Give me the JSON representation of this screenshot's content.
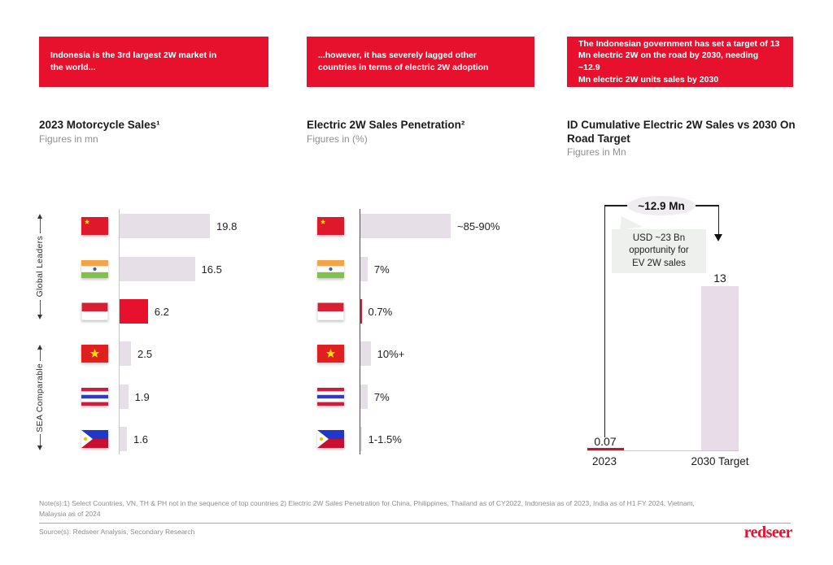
{
  "colors": {
    "accent_red": "#E8112D",
    "bar_neutral": "#E6DFE7",
    "bar_pink": "#E8DCE8",
    "bar_dark_red": "#C31432",
    "text_dark": "#1F1F1F",
    "text_gray": "#8F8F8F"
  },
  "header_boxes": [
    {
      "text": "Indonesia is the 3rd largest 2W market in\nthe world..."
    },
    {
      "text": "...however, it has severely lagged other\ncountries in terms of electric 2W adoption"
    },
    {
      "text": "The Indonesian government has set a target of 13\nMn electric 2W on the road by 2030, needing ~12.9\nMn electric 2W units sales by 2030"
    }
  ],
  "groups": {
    "top": "Global Leaders",
    "bottom": "SEA Comparable"
  },
  "chart_data": [
    {
      "type": "bar",
      "orientation": "horizontal",
      "title": "2023 Motorcycle Sales¹",
      "subtitle": "Figures in mn",
      "categories": [
        "China",
        "India",
        "Indonesia",
        "Vietnam",
        "Thailand",
        "Philippines"
      ],
      "values": [
        19.8,
        16.5,
        6.2,
        2.5,
        1.9,
        1.6
      ],
      "labels": [
        "19.8",
        "16.5",
        "6.2",
        "2.5",
        "1.9",
        "1.6"
      ],
      "highlight_index": 2,
      "grid": false,
      "legend": "none"
    },
    {
      "type": "bar",
      "orientation": "horizontal",
      "title": "Electric 2W Sales Penetration²",
      "subtitle": "Figures in (%)",
      "categories": [
        "China",
        "India",
        "Indonesia",
        "Vietnam",
        "Thailand",
        "Philippines"
      ],
      "values": [
        87.5,
        7,
        0.7,
        10,
        7,
        1.25
      ],
      "labels": [
        "~85-90%",
        "7%",
        "0.7%",
        "10%+",
        "7%",
        "1-1.5%"
      ],
      "highlight_index": 2,
      "grid": false,
      "legend": "none"
    },
    {
      "type": "bar",
      "orientation": "vertical",
      "title": "ID Cumulative Electric 2W Sales vs 2030 On\nRoad Target",
      "subtitle": "Figures in Mn",
      "categories": [
        "2023",
        "2030 Target"
      ],
      "values": [
        0.07,
        13
      ],
      "labels": [
        "0.07",
        "13"
      ],
      "ylim": [
        0,
        13
      ],
      "highlight_index": 0,
      "annotations": {
        "delta": "~12.9 Mn",
        "callout": "USD ~23 Bn\nopportunity for\nEV 2W sales"
      }
    }
  ],
  "footer": {
    "note": "Note(s):1) Select Countries, VN, TH & PH not in the sequence of top countries 2) Electric 2W Sales Penetration for China, Philippines, Thailand as of CY2022, Indonesia as of 2023, India as of H1 FY 2024, Vietnam,\nMalaysia as of 2024",
    "source": "Source(s): Redseer Analysis, Secondary Research",
    "logo": "redseer"
  }
}
